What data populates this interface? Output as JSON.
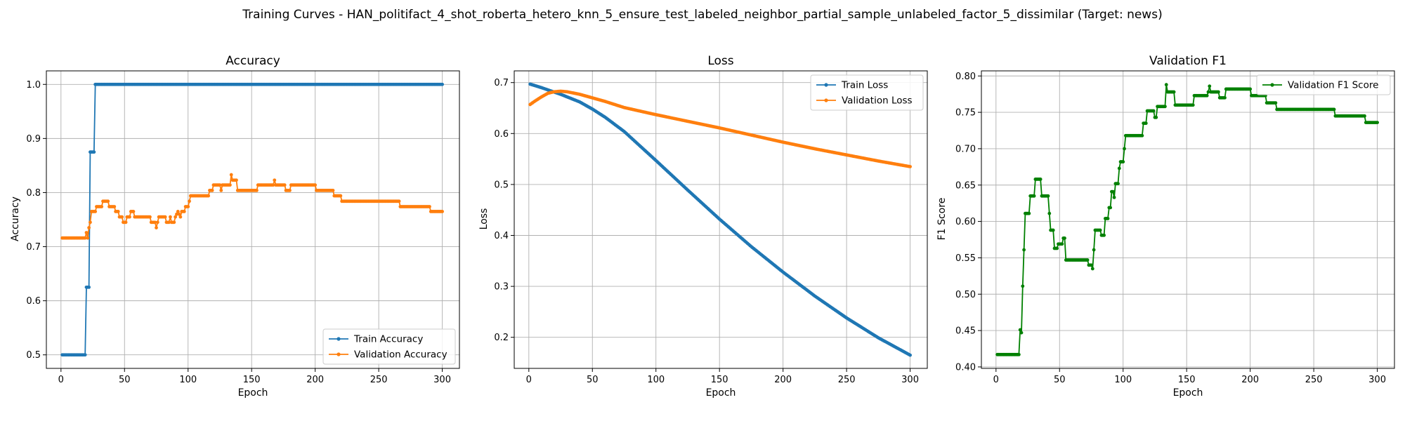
{
  "figure": {
    "suptitle": "Training Curves - HAN_politifact_4_shot_roberta_hetero_knn_5_ensure_test_labeled_neighbor_partial_sample_unlabeled_factor_5_dissimilar (Target: news)"
  },
  "colors": {
    "blue": "#1f77b4",
    "orange": "#ff7f0e",
    "green": "#008000",
    "grid": "#b0b0b0"
  },
  "chart_data": [
    {
      "type": "line",
      "title": "Accuracy",
      "xlabel": "Epoch",
      "ylabel": "Accuracy",
      "xlim": [
        -11.5,
        313.5
      ],
      "ylim": [
        0.475,
        1.025
      ],
      "xticks": [
        0,
        50,
        100,
        150,
        200,
        250,
        300
      ],
      "yticks": [
        0.5,
        0.6,
        0.7,
        0.8,
        0.9,
        1.0
      ],
      "ytick_labels": [
        "0.5",
        "0.6",
        "0.7",
        "0.8",
        "0.9",
        "1.0"
      ],
      "grid": true,
      "legend": "lower-right",
      "series": [
        {
          "name": "Train Accuracy",
          "color": "#1f77b4",
          "points": [
            [
              1,
              0.5
            ],
            [
              19,
              0.5
            ],
            [
              20,
              0.625
            ],
            [
              22,
              0.625
            ],
            [
              23,
              0.875
            ],
            [
              26,
              0.875
            ],
            [
              27,
              1.0
            ],
            [
              300,
              1.0
            ]
          ]
        },
        {
          "name": "Validation Accuracy",
          "color": "#ff7f0e",
          "points": [
            [
              1,
              0.716
            ],
            [
              19,
              0.716
            ],
            [
              20,
              0.726
            ],
            [
              21,
              0.716
            ],
            [
              22,
              0.735
            ],
            [
              23,
              0.745
            ],
            [
              24,
              0.765
            ],
            [
              27,
              0.765
            ],
            [
              28,
              0.774
            ],
            [
              32,
              0.774
            ],
            [
              33,
              0.784
            ],
            [
              37,
              0.784
            ],
            [
              38,
              0.774
            ],
            [
              42,
              0.774
            ],
            [
              43,
              0.765
            ],
            [
              45,
              0.765
            ],
            [
              46,
              0.755
            ],
            [
              48,
              0.755
            ],
            [
              49,
              0.745
            ],
            [
              51,
              0.745
            ],
            [
              52,
              0.755
            ],
            [
              54,
              0.755
            ],
            [
              55,
              0.765
            ],
            [
              57,
              0.765
            ],
            [
              58,
              0.755
            ],
            [
              70,
              0.755
            ],
            [
              71,
              0.745
            ],
            [
              74,
              0.745
            ],
            [
              75,
              0.735
            ],
            [
              76,
              0.745
            ],
            [
              77,
              0.755
            ],
            [
              82,
              0.755
            ],
            [
              83,
              0.745
            ],
            [
              85,
              0.745
            ],
            [
              86,
              0.755
            ],
            [
              87,
              0.745
            ],
            [
              89,
              0.745
            ],
            [
              90,
              0.755
            ],
            [
              92,
              0.765
            ],
            [
              94,
              0.755
            ],
            [
              95,
              0.765
            ],
            [
              97,
              0.765
            ],
            [
              98,
              0.774
            ],
            [
              100,
              0.774
            ],
            [
              101,
              0.784
            ],
            [
              102,
              0.794
            ],
            [
              116,
              0.794
            ],
            [
              117,
              0.804
            ],
            [
              119,
              0.804
            ],
            [
              120,
              0.814
            ],
            [
              125,
              0.814
            ],
            [
              126,
              0.804
            ],
            [
              127,
              0.814
            ],
            [
              133,
              0.814
            ],
            [
              134,
              0.833
            ],
            [
              135,
              0.823
            ],
            [
              138,
              0.823
            ],
            [
              139,
              0.804
            ],
            [
              154,
              0.804
            ],
            [
              155,
              0.814
            ],
            [
              167,
              0.814
            ],
            [
              168,
              0.823
            ],
            [
              169,
              0.814
            ],
            [
              176,
              0.814
            ],
            [
              177,
              0.804
            ],
            [
              180,
              0.804
            ],
            [
              181,
              0.814
            ],
            [
              200,
              0.814
            ],
            [
              201,
              0.804
            ],
            [
              214,
              0.804
            ],
            [
              215,
              0.794
            ],
            [
              220,
              0.794
            ],
            [
              221,
              0.784
            ],
            [
              266,
              0.784
            ],
            [
              267,
              0.774
            ],
            [
              290,
              0.774
            ],
            [
              291,
              0.765
            ],
            [
              300,
              0.765
            ]
          ]
        }
      ]
    },
    {
      "type": "line",
      "title": "Loss",
      "xlabel": "Epoch",
      "ylabel": "Loss",
      "xlim": [
        -11.5,
        313.5
      ],
      "ylim": [
        0.139,
        0.723
      ],
      "xticks": [
        0,
        50,
        100,
        150,
        200,
        250,
        300
      ],
      "yticks": [
        0.2,
        0.3,
        0.4,
        0.5,
        0.6,
        0.7
      ],
      "ytick_labels": [
        "0.2",
        "0.3",
        "0.4",
        "0.5",
        "0.6",
        "0.7"
      ],
      "grid": true,
      "legend": "upper-right",
      "series": [
        {
          "name": "Train Loss",
          "color": "#1f77b4",
          "points": [
            [
              1,
              0.697
            ],
            [
              10,
              0.69
            ],
            [
              25,
              0.677
            ],
            [
              40,
              0.662
            ],
            [
              50,
              0.648
            ],
            [
              60,
              0.632
            ],
            [
              75,
              0.604
            ],
            [
              100,
              0.547
            ],
            [
              125,
              0.489
            ],
            [
              150,
              0.432
            ],
            [
              175,
              0.378
            ],
            [
              200,
              0.328
            ],
            [
              225,
              0.281
            ],
            [
              250,
              0.238
            ],
            [
              275,
              0.199
            ],
            [
              300,
              0.165
            ]
          ]
        },
        {
          "name": "Validation Loss",
          "color": "#ff7f0e",
          "points": [
            [
              1,
              0.657
            ],
            [
              5,
              0.664
            ],
            [
              10,
              0.672
            ],
            [
              15,
              0.679
            ],
            [
              20,
              0.682
            ],
            [
              25,
              0.683
            ],
            [
              30,
              0.682
            ],
            [
              40,
              0.677
            ],
            [
              50,
              0.67
            ],
            [
              60,
              0.663
            ],
            [
              75,
              0.651
            ],
            [
              100,
              0.637
            ],
            [
              125,
              0.624
            ],
            [
              150,
              0.611
            ],
            [
              175,
              0.597
            ],
            [
              200,
              0.583
            ],
            [
              225,
              0.57
            ],
            [
              250,
              0.558
            ],
            [
              275,
              0.546
            ],
            [
              300,
              0.535
            ]
          ]
        }
      ]
    },
    {
      "type": "line",
      "title": "Validation F1",
      "xlabel": "Epoch",
      "ylabel": "F1 Score",
      "xlim": [
        -11.5,
        313.5
      ],
      "ylim": [
        0.398,
        0.807
      ],
      "xticks": [
        0,
        50,
        100,
        150,
        200,
        250,
        300
      ],
      "yticks": [
        0.4,
        0.45,
        0.5,
        0.55,
        0.6,
        0.65,
        0.7,
        0.75,
        0.8
      ],
      "ytick_labels": [
        "0.40",
        "0.45",
        "0.50",
        "0.55",
        "0.60",
        "0.65",
        "0.70",
        "0.75",
        "0.80"
      ],
      "grid": true,
      "legend": "upper-right",
      "series": [
        {
          "name": "Validation F1 Score",
          "color": "#008000",
          "points": [
            [
              1,
              0.417
            ],
            [
              18,
              0.417
            ],
            [
              19,
              0.451
            ],
            [
              20,
              0.447
            ],
            [
              21,
              0.511
            ],
            [
              22,
              0.561
            ],
            [
              23,
              0.611
            ],
            [
              26,
              0.611
            ],
            [
              27,
              0.635
            ],
            [
              30,
              0.635
            ],
            [
              31,
              0.658
            ],
            [
              35,
              0.658
            ],
            [
              36,
              0.635
            ],
            [
              41,
              0.635
            ],
            [
              42,
              0.611
            ],
            [
              43,
              0.588
            ],
            [
              45,
              0.588
            ],
            [
              46,
              0.563
            ],
            [
              48,
              0.563
            ],
            [
              49,
              0.569
            ],
            [
              52,
              0.569
            ],
            [
              53,
              0.577
            ],
            [
              54,
              0.577
            ],
            [
              55,
              0.547
            ],
            [
              72,
              0.547
            ],
            [
              73,
              0.54
            ],
            [
              75,
              0.54
            ],
            [
              76,
              0.535
            ],
            [
              77,
              0.561
            ],
            [
              78,
              0.588
            ],
            [
              82,
              0.588
            ],
            [
              83,
              0.581
            ],
            [
              85,
              0.581
            ],
            [
              86,
              0.604
            ],
            [
              88,
              0.604
            ],
            [
              89,
              0.619
            ],
            [
              90,
              0.619
            ],
            [
              91,
              0.641
            ],
            [
              92,
              0.641
            ],
            [
              93,
              0.633
            ],
            [
              94,
              0.652
            ],
            [
              96,
              0.652
            ],
            [
              97,
              0.673
            ],
            [
              98,
              0.682
            ],
            [
              100,
              0.682
            ],
            [
              101,
              0.7
            ],
            [
              102,
              0.718
            ],
            [
              115,
              0.718
            ],
            [
              116,
              0.735
            ],
            [
              118,
              0.735
            ],
            [
              119,
              0.752
            ],
            [
              124,
              0.752
            ],
            [
              125,
              0.743
            ],
            [
              126,
              0.743
            ],
            [
              127,
              0.758
            ],
            [
              133,
              0.758
            ],
            [
              134,
              0.788
            ],
            [
              135,
              0.778
            ],
            [
              140,
              0.778
            ],
            [
              141,
              0.76
            ],
            [
              155,
              0.76
            ],
            [
              156,
              0.773
            ],
            [
              166,
              0.773
            ],
            [
              167,
              0.778
            ],
            [
              168,
              0.786
            ],
            [
              169,
              0.778
            ],
            [
              175,
              0.778
            ],
            [
              176,
              0.77
            ],
            [
              180,
              0.77
            ],
            [
              181,
              0.782
            ],
            [
              200,
              0.782
            ],
            [
              201,
              0.773
            ],
            [
              212,
              0.773
            ],
            [
              213,
              0.763
            ],
            [
              220,
              0.763
            ],
            [
              221,
              0.754
            ],
            [
              266,
              0.754
            ],
            [
              267,
              0.745
            ],
            [
              290,
              0.745
            ],
            [
              291,
              0.736
            ],
            [
              300,
              0.736
            ]
          ]
        }
      ]
    }
  ]
}
